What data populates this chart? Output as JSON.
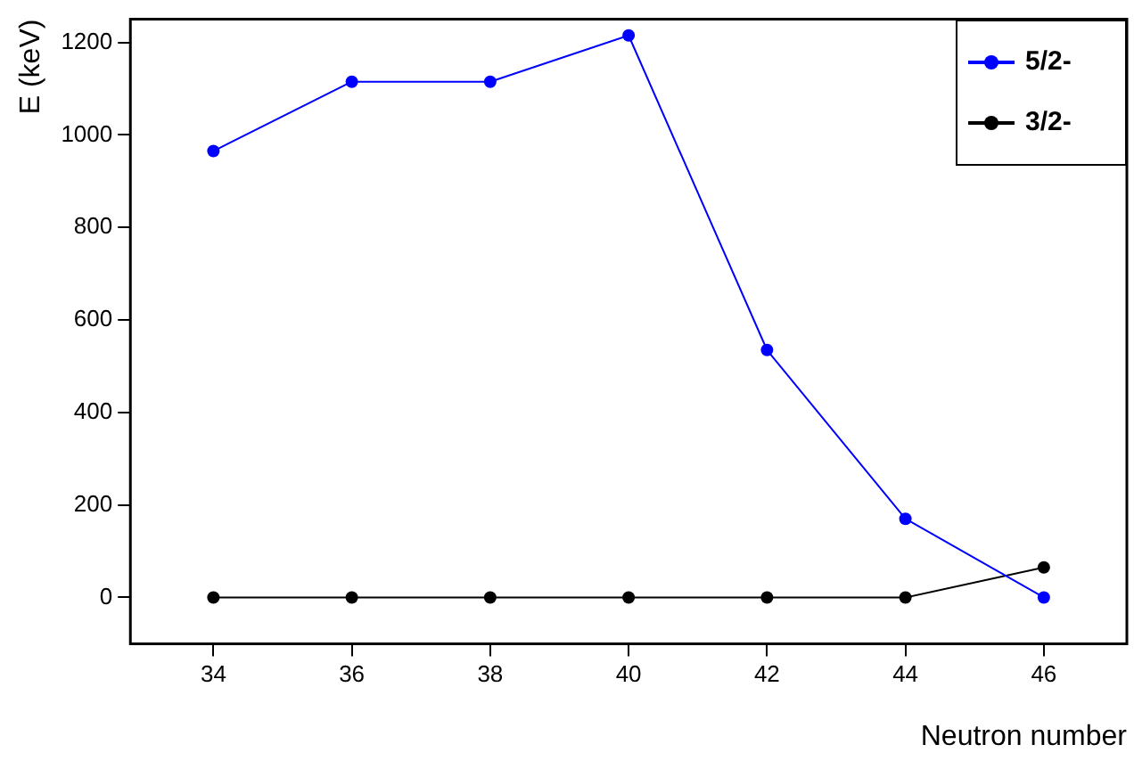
{
  "chart_data": {
    "type": "line",
    "xlabel": "Neutron number",
    "ylabel": "E (keV)",
    "x": [
      34,
      36,
      38,
      40,
      42,
      44,
      46
    ],
    "series": [
      {
        "name": "5/2-",
        "color": "#0000ff",
        "values": [
          965,
          1115,
          1115,
          1215,
          535,
          170,
          0
        ]
      },
      {
        "name": "3/2-",
        "color": "#000000",
        "values": [
          0,
          0,
          0,
          0,
          0,
          0,
          65
        ]
      }
    ],
    "xlim": [
      32.8,
      47.2
    ],
    "xticks": [
      34,
      36,
      38,
      40,
      42,
      44,
      46
    ],
    "ylim": [
      -100,
      1250
    ],
    "yticks": [
      0,
      200,
      400,
      600,
      800,
      1000,
      1200
    ],
    "grid": false,
    "legend": "top right",
    "marker": "circle",
    "line_style": "solid"
  }
}
